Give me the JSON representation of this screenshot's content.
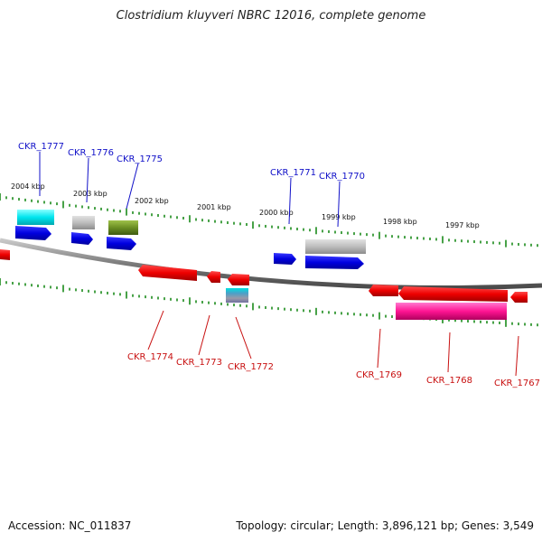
{
  "title": "Clostridium kluyveri NBRC 12016, complete genome",
  "footer": {
    "accession": "Accession: NC_011837",
    "topology": "Topology: circular; Length: 3,896,121 bp; Genes: 3,549"
  },
  "colors": {
    "forward_gene": "#0000e0",
    "reverse_gene": "#ee0000",
    "backbone": "#8a8a8a",
    "tick": "#1a8a1a",
    "label_top": "#1010c8",
    "label_bottom": "#c81010"
  },
  "kbp_labels": [
    "2004 kbp",
    "2003 kbp",
    "2002 kbp",
    "2001 kbp",
    "2000 kbp",
    "1999 kbp",
    "1998 kbp",
    "1997 kbp"
  ],
  "genes_top": [
    "CKR_1777",
    "CKR_1776",
    "CKR_1775",
    "CKR_1771",
    "CKR_1770"
  ],
  "genes_bottom": [
    "CKR_1774",
    "CKR_1773",
    "CKR_1772",
    "CKR_1769",
    "CKR_1768",
    "CKR_1767"
  ]
}
